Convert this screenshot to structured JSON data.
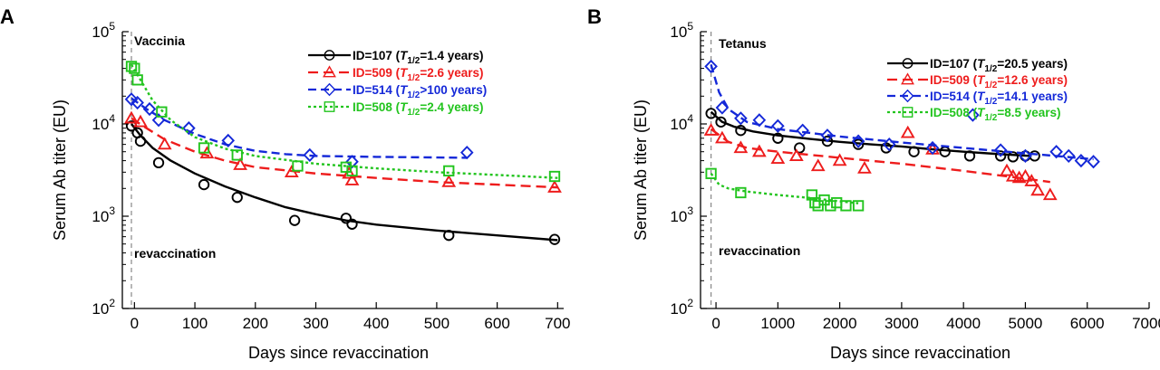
{
  "chart_data": [
    {
      "type": "scatter",
      "panel": "A",
      "title": "",
      "annotation_top": "Vaccinia",
      "annotation_bottom": "revaccination",
      "xlabel": "Days since revaccination",
      "ylabel": "Serum Ab titer (EU)",
      "xlim": [
        -20,
        710
      ],
      "ylim": [
        100,
        100000
      ],
      "yscale": "log",
      "xticks": [
        0,
        100,
        200,
        300,
        400,
        500,
        600,
        700
      ],
      "yticks": [
        {
          "value": 100,
          "base": "10",
          "exp": "2"
        },
        {
          "value": 1000,
          "base": "10",
          "exp": "3"
        },
        {
          "value": 10000,
          "base": "10",
          "exp": "4"
        },
        {
          "value": 100000,
          "base": "10",
          "exp": "5"
        }
      ],
      "revaccination_day": -5,
      "legend_position": "top-right",
      "series": [
        {
          "id": "ID=107",
          "half_life": "=1.4 years",
          "color": "#000000",
          "marker": "circle",
          "dash": "",
          "points": [
            [
              -5,
              9500
            ],
            [
              5,
              8000
            ],
            [
              10,
              6500
            ],
            [
              40,
              3800
            ],
            [
              115,
              2200
            ],
            [
              170,
              1600
            ],
            [
              265,
              900
            ],
            [
              350,
              950
            ],
            [
              360,
              820
            ],
            [
              520,
              620
            ],
            [
              695,
              560
            ]
          ],
          "fit": [
            [
              -5,
              10000
            ],
            [
              10,
              7500
            ],
            [
              30,
              5500
            ],
            [
              60,
              4000
            ],
            [
              100,
              2900
            ],
            [
              150,
              2100
            ],
            [
              200,
              1600
            ],
            [
              250,
              1250
            ],
            [
              300,
              1050
            ],
            [
              350,
              900
            ],
            [
              400,
              810
            ],
            [
              500,
              700
            ],
            [
              600,
              620
            ],
            [
              700,
              550
            ]
          ]
        },
        {
          "id": "ID=509",
          "half_life": "=2.6 years",
          "color": "#ee1c1c",
          "marker": "triangle",
          "dash": "11,6",
          "points": [
            [
              -5,
              11500
            ],
            [
              10,
              10500
            ],
            [
              50,
              6000
            ],
            [
              120,
              4800
            ],
            [
              175,
              3600
            ],
            [
              260,
              3000
            ],
            [
              355,
              2900
            ],
            [
              360,
              2450
            ],
            [
              520,
              2350
            ],
            [
              695,
              2050
            ]
          ],
          "fit": [
            [
              -5,
              11500
            ],
            [
              20,
              9000
            ],
            [
              50,
              6800
            ],
            [
              100,
              5000
            ],
            [
              150,
              4000
            ],
            [
              200,
              3400
            ],
            [
              300,
              2900
            ],
            [
              400,
              2600
            ],
            [
              500,
              2350
            ],
            [
              600,
              2200
            ],
            [
              700,
              2050
            ]
          ]
        },
        {
          "id": "ID=514",
          "half_life": ">100 years",
          "color": "#1428d8",
          "marker": "diamond",
          "dash": "9,5",
          "points": [
            [
              -5,
              18500
            ],
            [
              5,
              17000
            ],
            [
              25,
              14500
            ],
            [
              40,
              11000
            ],
            [
              90,
              9000
            ],
            [
              155,
              6600
            ],
            [
              290,
              4600
            ],
            [
              360,
              3900
            ],
            [
              550,
              4900
            ]
          ],
          "fit": [
            [
              -5,
              19000
            ],
            [
              20,
              14500
            ],
            [
              50,
              11000
            ],
            [
              100,
              7800
            ],
            [
              150,
              6000
            ],
            [
              200,
              5100
            ],
            [
              250,
              4700
            ],
            [
              300,
              4500
            ],
            [
              400,
              4400
            ],
            [
              550,
              4300
            ]
          ]
        },
        {
          "id": "ID=508",
          "half_life": "=2.4 years",
          "color": "#22c41e",
          "marker": "square",
          "dash": "3,3",
          "points": [
            [
              -5,
              42000
            ],
            [
              0,
              40000
            ],
            [
              5,
              30000
            ],
            [
              45,
              13500
            ],
            [
              115,
              5500
            ],
            [
              170,
              4600
            ],
            [
              270,
              3500
            ],
            [
              350,
              3400
            ],
            [
              360,
              3100
            ],
            [
              520,
              3100
            ],
            [
              695,
              2700
            ]
          ],
          "fit": [
            [
              -5,
              44000
            ],
            [
              10,
              30000
            ],
            [
              30,
              18000
            ],
            [
              60,
              11000
            ],
            [
              100,
              7200
            ],
            [
              150,
              5400
            ],
            [
              200,
              4500
            ],
            [
              300,
              3700
            ],
            [
              400,
              3300
            ],
            [
              500,
              3000
            ],
            [
              600,
              2800
            ],
            [
              700,
              2600
            ]
          ]
        }
      ]
    },
    {
      "type": "scatter",
      "panel": "B",
      "title": "",
      "annotation_top": "Tetanus",
      "annotation_bottom": "revaccination",
      "xlabel": "Days since revaccination",
      "ylabel": "Serum Ab titer (EU)",
      "xlim": [
        -250,
        7000
      ],
      "ylim": [
        100,
        100000
      ],
      "yscale": "log",
      "xticks": [
        0,
        1000,
        2000,
        3000,
        4000,
        5000,
        6000,
        7000
      ],
      "yticks": [
        {
          "value": 100,
          "base": "10",
          "exp": "2"
        },
        {
          "value": 1000,
          "base": "10",
          "exp": "3"
        },
        {
          "value": 10000,
          "base": "10",
          "exp": "4"
        },
        {
          "value": 100000,
          "base": "10",
          "exp": "5"
        }
      ],
      "revaccination_day": -80,
      "legend_position": "top-right",
      "series": [
        {
          "id": "ID=107",
          "half_life": "=20.5 years",
          "color": "#000000",
          "marker": "circle",
          "dash": "",
          "points": [
            [
              -80,
              13000
            ],
            [
              80,
              10500
            ],
            [
              400,
              8500
            ],
            [
              1000,
              7000
            ],
            [
              1350,
              5500
            ],
            [
              1800,
              6500
            ],
            [
              2300,
              6000
            ],
            [
              2750,
              5500
            ],
            [
              3200,
              5000
            ],
            [
              3700,
              5000
            ],
            [
              4100,
              4500
            ],
            [
              4600,
              4500
            ],
            [
              4800,
              4400
            ],
            [
              5000,
              4500
            ],
            [
              5150,
              4500
            ]
          ],
          "fit": [
            [
              -80,
              13500
            ],
            [
              100,
              10500
            ],
            [
              300,
              9300
            ],
            [
              600,
              8300
            ],
            [
              1000,
              7500
            ],
            [
              1500,
              6900
            ],
            [
              2000,
              6400
            ],
            [
              2500,
              6000
            ],
            [
              3000,
              5700
            ],
            [
              3500,
              5300
            ],
            [
              4000,
              5000
            ],
            [
              4500,
              4750
            ],
            [
              5100,
              4500
            ]
          ]
        },
        {
          "id": "ID=509",
          "half_life": "=12.6 years",
          "color": "#ee1c1c",
          "marker": "triangle",
          "dash": "11,6",
          "points": [
            [
              -80,
              8500
            ],
            [
              100,
              7000
            ],
            [
              400,
              5500
            ],
            [
              700,
              5000
            ],
            [
              1000,
              4200
            ],
            [
              1300,
              4500
            ],
            [
              1650,
              3500
            ],
            [
              2000,
              4000
            ],
            [
              2400,
              3300
            ],
            [
              3100,
              8000
            ],
            [
              3500,
              5300
            ],
            [
              4700,
              3100
            ],
            [
              4800,
              2700
            ],
            [
              4900,
              2600
            ],
            [
              5000,
              2700
            ],
            [
              5100,
              2400
            ],
            [
              5200,
              1900
            ],
            [
              5400,
              1700
            ]
          ],
          "fit": [
            [
              -80,
              8800
            ],
            [
              200,
              6400
            ],
            [
              500,
              5500
            ],
            [
              1000,
              5000
            ],
            [
              2000,
              4300
            ],
            [
              3000,
              3700
            ],
            [
              4000,
              3100
            ],
            [
              5000,
              2550
            ],
            [
              5400,
              2350
            ]
          ]
        },
        {
          "id": "ID=514",
          "half_life": "=14.1 years",
          "color": "#1428d8",
          "marker": "diamond",
          "dash": "9,5",
          "points": [
            [
              -80,
              42000
            ],
            [
              100,
              15000
            ],
            [
              400,
              11500
            ],
            [
              700,
              11000
            ],
            [
              1000,
              9500
            ],
            [
              1400,
              8500
            ],
            [
              1800,
              7500
            ],
            [
              2300,
              6500
            ],
            [
              2800,
              6000
            ],
            [
              3500,
              5500
            ],
            [
              4150,
              12500
            ],
            [
              4600,
              5200
            ],
            [
              5000,
              4500
            ],
            [
              5500,
              5000
            ],
            [
              5700,
              4500
            ],
            [
              5900,
              4000
            ],
            [
              6100,
              3900
            ]
          ],
          "fit": [
            [
              -80,
              44000
            ],
            [
              50,
              22000
            ],
            [
              200,
              14500
            ],
            [
              500,
              10500
            ],
            [
              1000,
              8800
            ],
            [
              2000,
              7300
            ],
            [
              3000,
              6300
            ],
            [
              4000,
              5500
            ],
            [
              5000,
              4800
            ],
            [
              6000,
              4200
            ],
            [
              6100,
              4150
            ]
          ]
        },
        {
          "id": "ID=508",
          "half_life": "=8.5 years",
          "color": "#22c41e",
          "marker": "square",
          "dash": "3,3",
          "points": [
            [
              -80,
              2900
            ],
            [
              400,
              1800
            ],
            [
              1550,
              1700
            ],
            [
              1600,
              1400
            ],
            [
              1650,
              1300
            ],
            [
              1750,
              1500
            ],
            [
              1850,
              1300
            ],
            [
              1950,
              1400
            ],
            [
              2100,
              1300
            ],
            [
              2300,
              1300
            ]
          ],
          "fit": [
            [
              -80,
              2900
            ],
            [
              50,
              2200
            ],
            [
              200,
              2000
            ],
            [
              500,
              1850
            ],
            [
              1000,
              1700
            ],
            [
              1500,
              1580
            ],
            [
              2000,
              1450
            ],
            [
              2300,
              1380
            ]
          ]
        }
      ]
    }
  ]
}
